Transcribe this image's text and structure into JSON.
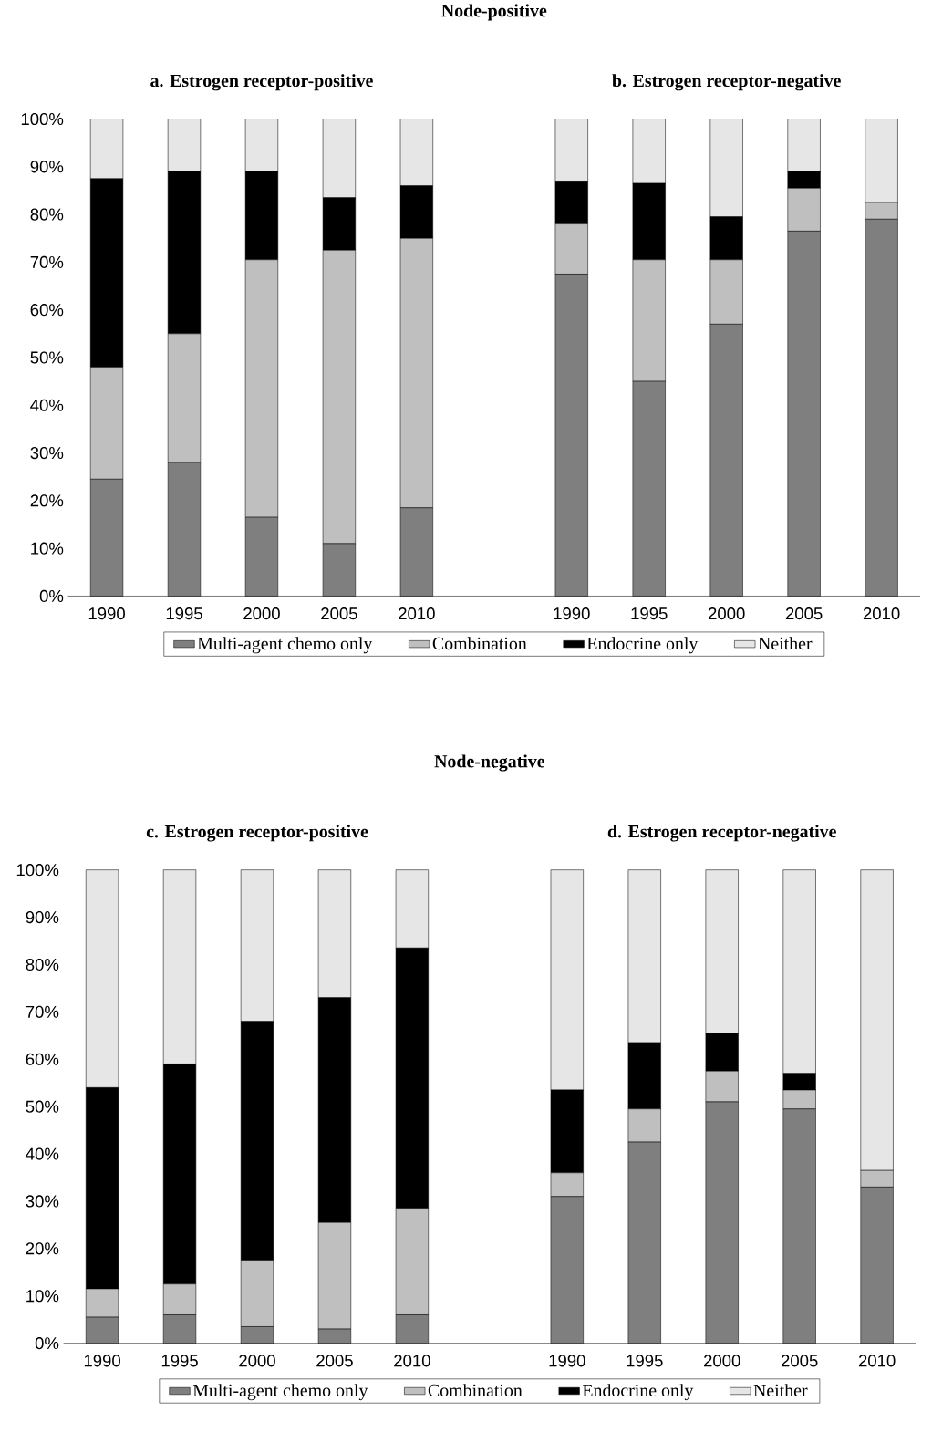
{
  "chart_data": [
    {
      "type": "bar",
      "stacked": true,
      "title": "Node-positive",
      "annotations": [
        "a. Estrogen receptor-positive",
        "b. Estrogen receptor-negative"
      ],
      "categories": [
        "1990",
        "1995",
        "2000",
        "2005",
        "2010",
        null,
        "1990",
        "1995",
        "2000",
        "2005",
        "2010"
      ],
      "ylim": [
        0,
        100
      ],
      "yticks": [
        {
          "value": 0,
          "label": "0%"
        },
        {
          "value": 10,
          "label": "10%"
        },
        {
          "value": 20,
          "label": "20%"
        },
        {
          "value": 30,
          "label": "30%"
        },
        {
          "value": 40,
          "label": "40%"
        },
        {
          "value": 50,
          "label": "50%"
        },
        {
          "value": 60,
          "label": "60%"
        },
        {
          "value": 70,
          "label": "70%"
        },
        {
          "value": 80,
          "label": "80%"
        },
        {
          "value": 90,
          "label": "90%"
        },
        {
          "value": 100,
          "label": "100%"
        }
      ],
      "legend": "bottom",
      "series": [
        {
          "name": "Multi-agent chemo only",
          "color": "#7f7f7f",
          "values": [
            24.5,
            28,
            16.5,
            11,
            18.5,
            null,
            67.5,
            45,
            57,
            76.5,
            79
          ]
        },
        {
          "name": "Combination",
          "color": "#bfbfbf",
          "values": [
            23.5,
            27,
            54,
            61.5,
            56.5,
            null,
            10.5,
            25.5,
            13.5,
            9,
            3.5
          ]
        },
        {
          "name": "Endocrine only",
          "color": "#000000",
          "values": [
            39.5,
            34,
            18.5,
            11,
            11,
            null,
            9,
            16,
            9,
            3.5,
            0
          ]
        },
        {
          "name": "Neither",
          "color": "#e6e6e6",
          "values": [
            12.5,
            11,
            11,
            16.5,
            14,
            null,
            13,
            13.5,
            20.5,
            11,
            17.5
          ]
        }
      ]
    },
    {
      "type": "bar",
      "stacked": true,
      "title": "Node-negative",
      "annotations": [
        "c. Estrogen receptor-positive",
        "d. Estrogen receptor-negative"
      ],
      "categories": [
        "1990",
        "1995",
        "2000",
        "2005",
        "2010",
        null,
        "1990",
        "1995",
        "2000",
        "2005",
        "2010"
      ],
      "ylim": [
        0,
        100
      ],
      "yticks": [
        {
          "value": 0,
          "label": "0%"
        },
        {
          "value": 10,
          "label": "10%"
        },
        {
          "value": 20,
          "label": "20%"
        },
        {
          "value": 30,
          "label": "30%"
        },
        {
          "value": 40,
          "label": "40%"
        },
        {
          "value": 50,
          "label": "50%"
        },
        {
          "value": 60,
          "label": "60%"
        },
        {
          "value": 70,
          "label": "70%"
        },
        {
          "value": 80,
          "label": "80%"
        },
        {
          "value": 90,
          "label": "90%"
        },
        {
          "value": 100,
          "label": "100%"
        }
      ],
      "legend": "bottom",
      "series": [
        {
          "name": "Multi-agent chemo only",
          "color": "#7f7f7f",
          "values": [
            5.5,
            6,
            3.5,
            3,
            6,
            null,
            31,
            42.5,
            51,
            49.5,
            33
          ]
        },
        {
          "name": "Combination",
          "color": "#bfbfbf",
          "values": [
            6,
            6.5,
            14,
            22.5,
            22.5,
            null,
            5,
            7,
            6.5,
            4,
            3.5
          ]
        },
        {
          "name": "Endocrine only",
          "color": "#000000",
          "values": [
            42.5,
            46.5,
            50.5,
            47.5,
            55,
            null,
            17.5,
            14,
            8,
            3.5,
            0
          ]
        },
        {
          "name": "Neither",
          "color": "#e6e6e6",
          "values": [
            46,
            41,
            32,
            27,
            16.5,
            null,
            46.5,
            36.5,
            34.5,
            43,
            63.5
          ]
        }
      ]
    }
  ]
}
